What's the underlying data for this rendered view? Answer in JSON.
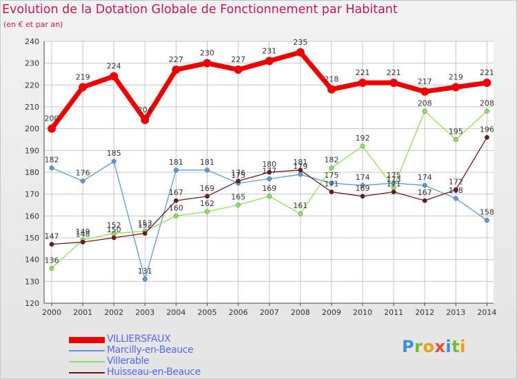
{
  "title": "Evolution de la Dotation Globale de Fonctionnement par Habitant",
  "subtitle": "(en € et par an)",
  "logo": {
    "letters": [
      "P",
      "r",
      "o",
      "x",
      "i",
      "t",
      "i"
    ],
    "colors": [
      "#3a8fd8",
      "#7bb82a",
      "#f39c12",
      "#e74c3c",
      "#3a8fd8",
      "#7bb82a",
      "#f39c12"
    ]
  },
  "colors": {
    "grid": "#c4c4c4",
    "axis": "#444444",
    "tick_label": "#333333",
    "legend_text": "#5566ee"
  },
  "chart_data": {
    "type": "line",
    "title": "Evolution de la Dotation Globale de Fonctionnement par Habitant",
    "subtitle": "(en € et par an)",
    "xlabel": "",
    "ylabel": "",
    "x": [
      2000,
      2001,
      2002,
      2003,
      2004,
      2005,
      2006,
      2007,
      2008,
      2009,
      2010,
      2011,
      2012,
      2013,
      2014
    ],
    "x_labels": [
      "2000",
      "2001",
      "2002",
      "2003",
      "2004",
      "2005",
      "2006",
      "2007",
      "2008",
      "2009",
      "2010",
      "2011",
      "2012",
      "2013",
      "2014"
    ],
    "ylim": [
      120,
      240
    ],
    "yticks": [
      120,
      130,
      140,
      150,
      160,
      170,
      180,
      190,
      200,
      210,
      220,
      230,
      240
    ],
    "grid": true,
    "legend_position": "bottom-left",
    "series": [
      {
        "name": "VILLIERSFAUX",
        "color": "#ee0000",
        "highlight": true,
        "values": [
          200,
          219,
          224,
          204,
          227,
          230,
          227,
          231,
          235,
          218,
          221,
          221,
          217,
          219,
          221
        ]
      },
      {
        "name": "Marcilly-en-Beauce",
        "color": "#5b9bd5",
        "highlight": false,
        "values": [
          182,
          176,
          185,
          131,
          181,
          181,
          175,
          177,
          179,
          175,
          174,
          175,
          174,
          168,
          158
        ]
      },
      {
        "name": "Villerable",
        "color": "#8fe05a",
        "highlight": false,
        "values": [
          136,
          149,
          152,
          153,
          160,
          162,
          165,
          169,
          161,
          182,
          192,
          173,
          208,
          195,
          208
        ]
      },
      {
        "name": "Huisseau-en-Beauce",
        "color": "#6b1a1a",
        "highlight": false,
        "values": [
          147,
          148,
          150,
          152,
          167,
          169,
          176,
          180,
          181,
          171,
          169,
          171,
          167,
          172,
          196
        ]
      }
    ]
  }
}
